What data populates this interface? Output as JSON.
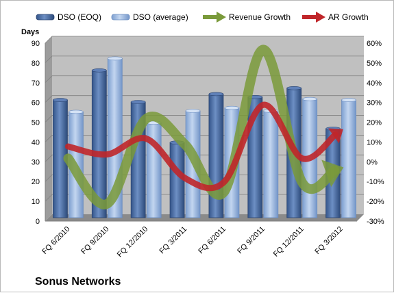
{
  "chart_data": {
    "type": "bar",
    "title": "Sonus Networks",
    "ylabel": "Days",
    "ylim": [
      0,
      90
    ],
    "y2lim": [
      -30,
      60
    ],
    "y_ticks": [
      "0",
      "10",
      "20",
      "30",
      "40",
      "50",
      "60",
      "70",
      "80",
      "90"
    ],
    "y2_ticks": [
      "-30%",
      "-20%",
      "-10%",
      "0%",
      "10%",
      "20%",
      "30%",
      "40%",
      "50%",
      "60%"
    ],
    "categories": [
      "FQ 6/2010",
      "FQ 9/2010",
      "FQ 12/2010",
      "FQ 3/2011",
      "FQ 6/2011",
      "FQ 9/2011",
      "FQ 12/2011",
      "FQ 3/2012"
    ],
    "grid": true,
    "legend_position": "top",
    "series": [
      {
        "name": "DSO (EOQ)",
        "kind": "bar",
        "axis": "left",
        "color": "#4a6fa5",
        "values": [
          59.5,
          74.5,
          58.5,
          38,
          62.5,
          61,
          65.5,
          45
        ]
      },
      {
        "name": "DSO (average)",
        "kind": "bar",
        "axis": "left",
        "color": "#8fb0dc",
        "values": [
          53.5,
          80.5,
          48,
          54,
          55.5,
          54,
          60,
          59.5
        ]
      },
      {
        "name": "Revenue Growth",
        "kind": "line",
        "axis": "right",
        "color": "#7a9a3a",
        "values": [
          0,
          -23,
          20,
          7,
          -17,
          55,
          -12,
          -5
        ]
      },
      {
        "name": "AR Growth",
        "kind": "line",
        "axis": "right",
        "color": "#c0262a",
        "values": [
          6,
          2,
          10,
          -10,
          -12,
          27,
          0,
          14
        ]
      }
    ]
  },
  "colors": {
    "plot_bg": "#c0c0c0",
    "side_wall": "#9c9c9c",
    "floor": "#8a8a8a",
    "grid": "#808080"
  }
}
